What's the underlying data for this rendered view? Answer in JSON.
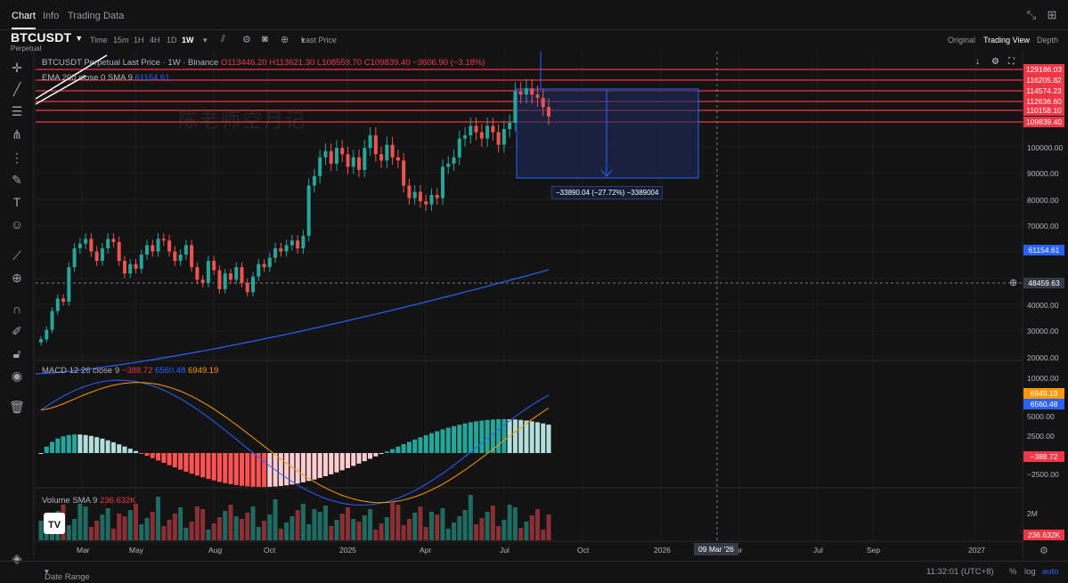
{
  "nav": {
    "tabs": [
      "Chart",
      "Info",
      "Trading Data"
    ],
    "active": "Chart",
    "icons": [
      "collapse-icon",
      "grid-icon"
    ]
  },
  "symbol": {
    "name": "BTCUSDT",
    "subtitle": "Perpetual"
  },
  "toolbar": {
    "timeframes": [
      "Time",
      "15m",
      "1H",
      "4H",
      "1D",
      "1W"
    ],
    "selected_timeframe": "1W",
    "price_type": "Last Price",
    "views": [
      "Original",
      "Trading View",
      "Depth"
    ],
    "selected_view": "Trading View"
  },
  "legend": {
    "title": "BTCUSDT Perpetual Last Price · 1W · Binance",
    "ohlc": "O113446.20  H113621.30  L108559.70  C109839.40  −3606.90 (−3.18%)",
    "ema_label": "EMA 200 close 0 SMA 9",
    "ema_value": "61154.61",
    "macd_label": "MACD 12 26 close 9",
    "macd_hist": "−388.72",
    "macd_line": "6560.48",
    "macd_signal": "6949.19",
    "volume_label": "Volume SMA 9",
    "volume_value": "236.632K"
  },
  "price_axis": {
    "ticks": [
      "100000.00",
      "90000.00",
      "80000.00",
      "70000.00",
      "40000.00",
      "30000.00",
      "20000.00"
    ],
    "labels": [
      {
        "text": "129186.03",
        "color": "#f23645"
      },
      {
        "text": "116205.82",
        "color": "#f23645"
      },
      {
        "text": "114574.23",
        "color": "#f23645"
      },
      {
        "text": "112636.60",
        "color": "#f23645"
      },
      {
        "text": "110158.10",
        "color": "#f23645"
      },
      {
        "text": "109839.40",
        "color": "#f23645"
      },
      {
        "text": "61154.61",
        "color": "#2962ff"
      },
      {
        "text": "48459.63",
        "color": "#363a45"
      }
    ]
  },
  "macd_axis": {
    "ticks": [
      "10000.00",
      "5000.00",
      "2500.00",
      "−2500.00"
    ],
    "labels": [
      {
        "text": "6949.19",
        "color": "#ff9800"
      },
      {
        "text": "6560.48",
        "color": "#2962ff"
      },
      {
        "text": "−388.72",
        "color": "#f23645"
      }
    ]
  },
  "volume_axis": {
    "ticks": [
      "2M"
    ],
    "label": "236.632K"
  },
  "time_axis": {
    "ticks": [
      "Mar",
      "May",
      "Aug",
      "Oct",
      "2025",
      "Apr",
      "Jul",
      "Oct",
      "2026",
      "pr",
      "Jul",
      "Sep",
      "2027"
    ],
    "cursor_label": "09 Mar '26"
  },
  "measure": {
    "text": "−33890.04 (−27.72%) −3389004"
  },
  "watermark": "陈老师空月记",
  "logo": "TV",
  "bottom": {
    "date_range": "Date Range",
    "clock": "11:32:01 (UTC+8)",
    "pct": "%",
    "log": "log",
    "auto": "auto"
  },
  "colors": {
    "up": "#26a69a",
    "down": "#ef5350",
    "ema": "#2962ff",
    "macd": "#2962ff",
    "signal": "#ff9800",
    "hline": "#f23645"
  }
}
